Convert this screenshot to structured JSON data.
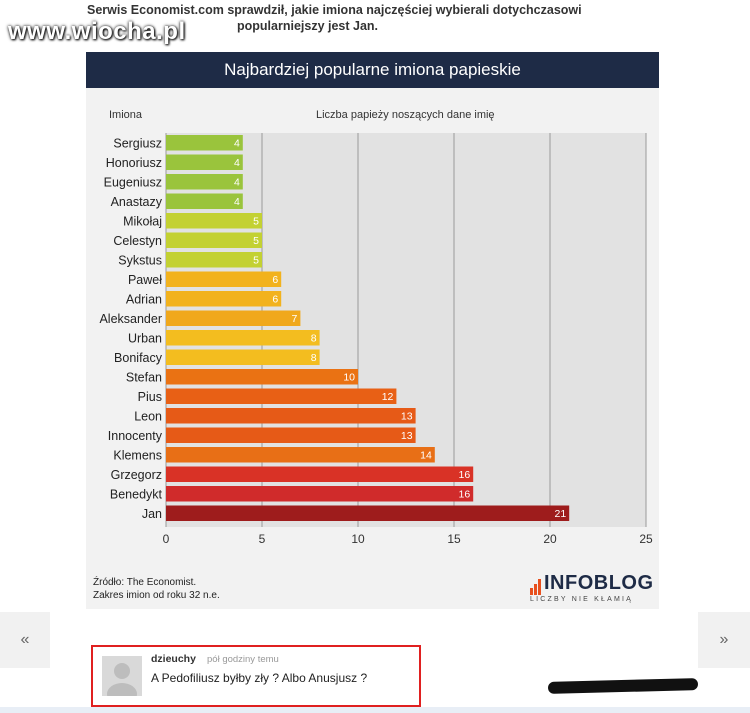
{
  "watermark": "www.wiocha.pl",
  "intro": {
    "line1": "Serwis Economist.com sprawdził, jakie imiona najczęściej wybierali dotychczasowi",
    "line2": "popularniejszy jest Jan."
  },
  "chart_data": {
    "type": "bar",
    "orientation": "horizontal",
    "title": "Najbardziej popularne imiona papieskie",
    "category_header": "Imiona",
    "value_header": "Liczba papieży noszących dane imię",
    "categories": [
      "Sergiusz",
      "Honoriusz",
      "Eugeniusz",
      "Anastazy",
      "Mikołaj",
      "Celestyn",
      "Sykstus",
      "Paweł",
      "Adrian",
      "Aleksander",
      "Urban",
      "Bonifacy",
      "Stefan",
      "Pius",
      "Leon",
      "Innocenty",
      "Klemens",
      "Grzegorz",
      "Benedykt",
      "Jan"
    ],
    "values": [
      4,
      4,
      4,
      4,
      5,
      5,
      5,
      6,
      6,
      7,
      8,
      8,
      10,
      12,
      13,
      13,
      14,
      16,
      16,
      21
    ],
    "colors": [
      "#9ac43c",
      "#9ac43c",
      "#9ac43c",
      "#9ac43c",
      "#c3d132",
      "#c3d132",
      "#c3d132",
      "#f2b21d",
      "#f2b21d",
      "#f0a81c",
      "#f3bd1f",
      "#f3bd1f",
      "#ea7213",
      "#e86015",
      "#e65a17",
      "#e65a17",
      "#e86f16",
      "#d93226",
      "#d02b2b",
      "#9e1c1c"
    ],
    "xlim": [
      0,
      25
    ],
    "xticks": [
      0,
      5,
      10,
      15,
      20,
      25
    ],
    "grid": true,
    "data_labels": true
  },
  "source": {
    "line1": "Źródło: The Economist.",
    "line2": "Zakres imion od roku 32 n.e."
  },
  "logo": {
    "text": "INFOBLOG",
    "tagline": "LICZBY NIE KŁAMIĄ"
  },
  "nav": {
    "prev": "«",
    "next": "»"
  },
  "comment": {
    "user": "dzieuchy",
    "time": "pół godziny temu",
    "text": "A Pedofiliusz byłby zły ? Albo Anusjusz ?"
  },
  "colors": {
    "title_bg": "#1e2b46",
    "panel_bg": "#f2f2f2",
    "plot_bg": "#e2e2e2",
    "highlight_border": "#e02020"
  }
}
